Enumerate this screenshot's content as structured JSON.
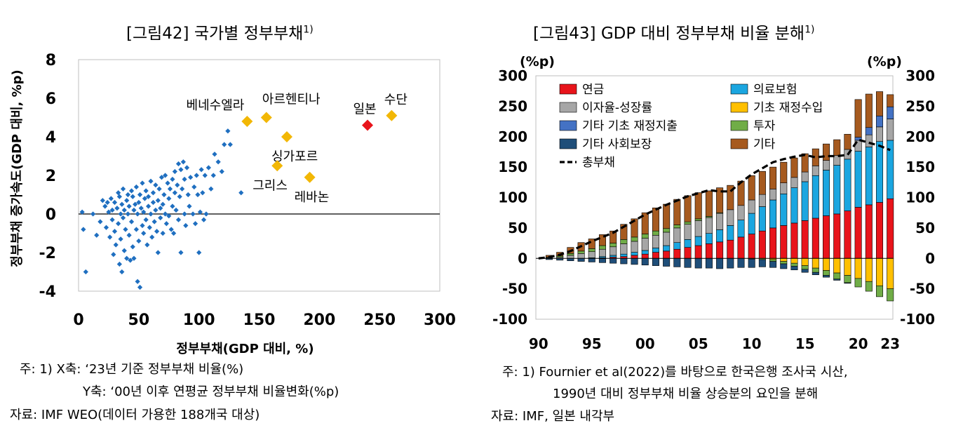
{
  "left": {
    "title": "[그림42] 국가별 정부부채",
    "title_sup": "1)",
    "notes": [
      "주: 1) X축: ‘23년 기준 정부부채 비율(%)",
      "Y축: ‘00년 이후 연평균 정부부채 비율변화(%p)",
      "자료: IMF WEO(데이터 가용한 188개국 대상)"
    ]
  },
  "right": {
    "title": "[그림43] GDP 대비 정부부채 비율 분해",
    "title_sup": "1)",
    "notes": [
      "주: 1) Fournier et al(2022)를 바탕으로 한국은행 조사국 시산,",
      "1990년 대비 정부부채 비율 상승분의 요인을 분해",
      "자료: IMF, 일본 내각부"
    ]
  },
  "chart_data": [
    {
      "type": "scatter",
      "xlabel": "정부부채(GDP 대비, %)",
      "ylabel": "정부부채 증가속도(GDP 대비, %p)",
      "xlim": [
        0,
        300
      ],
      "ylim": [
        -4,
        8
      ],
      "x_ticks": [
        0,
        50,
        100,
        150,
        200,
        250,
        300
      ],
      "y_ticks": [
        -4,
        -2,
        0,
        2,
        4,
        6,
        8
      ],
      "colors": {
        "countries": "#1f6fc0",
        "highlight": "#f2b705",
        "japan": "#e8141b"
      },
      "points": [
        [
          3,
          0.1
        ],
        [
          4,
          -0.8
        ],
        [
          6,
          -3.0
        ],
        [
          12,
          0.0
        ],
        [
          15,
          -1.1
        ],
        [
          18,
          -0.4
        ],
        [
          20,
          0.7
        ],
        [
          22,
          0.4
        ],
        [
          23,
          -0.7
        ],
        [
          24,
          0.6
        ],
        [
          25,
          0.1
        ],
        [
          26,
          -1.2
        ],
        [
          27,
          0.8
        ],
        [
          28,
          0.2
        ],
        [
          28,
          -0.3
        ],
        [
          29,
          -2.1
        ],
        [
          30,
          0.6
        ],
        [
          30,
          -0.9
        ],
        [
          31,
          -1.6
        ],
        [
          32,
          0.3
        ],
        [
          33,
          1.1
        ],
        [
          33,
          -0.5
        ],
        [
          34,
          -2.6
        ],
        [
          34,
          0.9
        ],
        [
          35,
          0.0
        ],
        [
          35,
          -1.3
        ],
        [
          36,
          0.5
        ],
        [
          36,
          -3.0
        ],
        [
          37,
          1.3
        ],
        [
          37,
          -0.2
        ],
        [
          38,
          0.2
        ],
        [
          38,
          -1.9
        ],
        [
          39,
          -0.8
        ],
        [
          40,
          0.7
        ],
        [
          40,
          -2.3
        ],
        [
          41,
          0.0
        ],
        [
          41,
          1.0
        ],
        [
          42,
          -1.1
        ],
        [
          42,
          0.4
        ],
        [
          43,
          -2.4
        ],
        [
          44,
          1.2
        ],
        [
          44,
          -0.4
        ],
        [
          45,
          0.9
        ],
        [
          45,
          -1.7
        ],
        [
          46,
          0.2
        ],
        [
          46,
          -2.3
        ],
        [
          47,
          0.5
        ],
        [
          48,
          1.4
        ],
        [
          48,
          -0.8
        ],
        [
          49,
          -3.5
        ],
        [
          49,
          0.0
        ],
        [
          50,
          0.6
        ],
        [
          50,
          -1.4
        ],
        [
          51,
          1.0
        ],
        [
          51,
          -3.8
        ],
        [
          52,
          0.3
        ],
        [
          53,
          -0.6
        ],
        [
          53,
          1.6
        ],
        [
          54,
          0.1
        ],
        [
          54,
          -1.0
        ],
        [
          55,
          0.8
        ],
        [
          56,
          -0.3
        ],
        [
          56,
          1.2
        ],
        [
          57,
          -1.6
        ],
        [
          58,
          0.4
        ],
        [
          58,
          0.9
        ],
        [
          59,
          -0.7
        ],
        [
          60,
          1.7
        ],
        [
          60,
          0.0
        ],
        [
          61,
          -1.2
        ],
        [
          62,
          0.6
        ],
        [
          62,
          1.1
        ],
        [
          63,
          -0.4
        ],
        [
          64,
          0.2
        ],
        [
          64,
          1.5
        ],
        [
          65,
          -0.9
        ],
        [
          66,
          0.7
        ],
        [
          66,
          -2.0
        ],
        [
          67,
          1.3
        ],
        [
          68,
          0.3
        ],
        [
          68,
          -0.2
        ],
        [
          69,
          1.9
        ],
        [
          70,
          0.5
        ],
        [
          70,
          -1.0
        ],
        [
          71,
          1.0
        ],
        [
          72,
          2.0
        ],
        [
          72,
          0.0
        ],
        [
          73,
          -0.5
        ],
        [
          74,
          1.6
        ],
        [
          75,
          0.8
        ],
        [
          75,
          -0.1
        ],
        [
          76,
          1.3
        ],
        [
          77,
          -0.8
        ],
        [
          78,
          1.8
        ],
        [
          78,
          0.4
        ],
        [
          79,
          -1.0
        ],
        [
          80,
          1.1
        ],
        [
          80,
          2.2
        ],
        [
          81,
          0.2
        ],
        [
          82,
          1.5
        ],
        [
          83,
          2.6
        ],
        [
          83,
          -0.3
        ],
        [
          84,
          0.9
        ],
        [
          85,
          2.3
        ],
        [
          85,
          -2.0
        ],
        [
          86,
          1.3
        ],
        [
          87,
          2.7
        ],
        [
          88,
          0.0
        ],
        [
          88,
          1.8
        ],
        [
          89,
          -0.6
        ],
        [
          90,
          2.4
        ],
        [
          91,
          1.0
        ],
        [
          92,
          0.4
        ],
        [
          93,
          1.9
        ],
        [
          95,
          0.0
        ],
        [
          96,
          1.4
        ],
        [
          97,
          -0.5
        ],
        [
          98,
          2.0
        ],
        [
          99,
          1.0
        ],
        [
          100,
          -2.0
        ],
        [
          101,
          0.1
        ],
        [
          102,
          2.3
        ],
        [
          103,
          1.1
        ],
        [
          104,
          -0.3
        ],
        [
          105,
          2.0
        ],
        [
          106,
          0.0
        ],
        [
          108,
          2.4
        ],
        [
          110,
          1.3
        ],
        [
          112,
          2.0
        ],
        [
          113,
          3.1
        ],
        [
          116,
          2.7
        ],
        [
          119,
          2.2
        ],
        [
          121,
          3.6
        ],
        [
          124,
          4.3
        ],
        [
          126,
          3.6
        ],
        [
          135,
          1.1
        ]
      ],
      "labeled_points": [
        {
          "name": "베네수엘라",
          "x": 140,
          "y": 4.8,
          "color": "#f2b705"
        },
        {
          "name": "아르헨티나",
          "x": 156,
          "y": 5.0,
          "color": "#f2b705"
        },
        {
          "name": "싱가포르",
          "x": 173,
          "y": 4.0,
          "color": "#f2b705"
        },
        {
          "name": "그리스",
          "x": 165,
          "y": 2.5,
          "color": "#f2b705"
        },
        {
          "name": "레바논",
          "x": 192,
          "y": 1.9,
          "color": "#f2b705"
        },
        {
          "name": "일본",
          "x": 240,
          "y": 4.6,
          "color": "#e8141b"
        },
        {
          "name": "수단",
          "x": 260,
          "y": 5.1,
          "color": "#f2b705"
        }
      ]
    },
    {
      "type": "bar",
      "stacked": true,
      "left_unit": "(%p)",
      "right_unit": "(%p)",
      "ylim": [
        -100,
        300
      ],
      "y_ticks": [
        -100,
        -50,
        0,
        50,
        100,
        150,
        200,
        250,
        300
      ],
      "x_tick_labels": [
        {
          "year": 1990,
          "label": "90"
        },
        {
          "year": 1995,
          "label": "95"
        },
        {
          "year": 2000,
          "label": "00"
        },
        {
          "year": 2005,
          "label": "05"
        },
        {
          "year": 2010,
          "label": "10"
        },
        {
          "year": 2015,
          "label": "15"
        },
        {
          "year": 2020,
          "label": "20"
        },
        {
          "year": 2023,
          "label": "23"
        }
      ],
      "years": [
        1990,
        1991,
        1992,
        1993,
        1994,
        1995,
        1996,
        1997,
        1998,
        1999,
        2000,
        2001,
        2002,
        2003,
        2004,
        2005,
        2006,
        2007,
        2008,
        2009,
        2010,
        2011,
        2012,
        2013,
        2014,
        2015,
        2016,
        2017,
        2018,
        2019,
        2020,
        2021,
        2022,
        2023
      ],
      "series": [
        {
          "name": "연금",
          "color": "#e8141b",
          "stack": "pos",
          "values": [
            0,
            0,
            0,
            0,
            0,
            0,
            1,
            2,
            3,
            5,
            7,
            10,
            12,
            15,
            18,
            21,
            24,
            27,
            30,
            35,
            40,
            45,
            50,
            54,
            58,
            62,
            66,
            70,
            73,
            78,
            84,
            88,
            92,
            98
          ]
        },
        {
          "name": "의료보험",
          "color": "#1ba6e0",
          "stack": "pos",
          "values": [
            0,
            0,
            0,
            0,
            0,
            1,
            2,
            3,
            4,
            5,
            6,
            7,
            9,
            11,
            13,
            15,
            17,
            20,
            24,
            28,
            34,
            40,
            46,
            52,
            58,
            64,
            70,
            75,
            80,
            85,
            92,
            95,
            100,
            96
          ]
        },
        {
          "name": "이자율-성장률",
          "color": "#a6a6a6",
          "stack": "pos",
          "values": [
            0,
            1,
            2,
            5,
            8,
            10,
            12,
            14,
            17,
            18,
            20,
            21,
            22,
            24,
            25,
            26,
            26,
            27,
            26,
            24,
            22,
            20,
            18,
            18,
            17,
            16,
            16,
            16,
            16,
            16,
            18,
            20,
            24,
            35
          ]
        },
        {
          "name": "기초 재정수입",
          "color": "#ffc000",
          "stack": "neg",
          "values": [
            0,
            0,
            0,
            0,
            0,
            0,
            0,
            0,
            0,
            0,
            0,
            0,
            0,
            0,
            0,
            0,
            0,
            0,
            0,
            0,
            0,
            0,
            -2,
            -5,
            -8,
            -12,
            -16,
            -20,
            -24,
            -28,
            -33,
            -38,
            -45,
            -50
          ]
        },
        {
          "name": "기타 기초 재정지출",
          "color": "#4472c4",
          "stack": "pos",
          "values": [
            0,
            0,
            0,
            0,
            0,
            0,
            0,
            0,
            0,
            0,
            0,
            0,
            0,
            0,
            0,
            0,
            0,
            0,
            0,
            0,
            0,
            0,
            0,
            0,
            0,
            0,
            0,
            0,
            0,
            0,
            5,
            12,
            18,
            20
          ]
        },
        {
          "name": "투자",
          "color": "#70ad47",
          "stack": "mixed",
          "values": [
            0,
            1,
            2,
            3,
            4,
            5,
            6,
            6,
            7,
            7,
            7,
            7,
            6,
            5,
            4,
            3,
            2,
            1,
            0,
            0,
            -1,
            -2,
            -3,
            -4,
            -5,
            -6,
            -7,
            -8,
            -10,
            -12,
            -14,
            -16,
            -18,
            -20
          ]
        },
        {
          "name": "기타 사회보장",
          "color": "#1f4e79",
          "stack": "neg",
          "values": [
            0,
            -2,
            -3,
            -4,
            -5,
            -6,
            -7,
            -8,
            -9,
            -10,
            -11,
            -12,
            -13,
            -14,
            -15,
            -16,
            -16,
            -17,
            -16,
            -15,
            -14,
            -12,
            -10,
            -8,
            -6,
            -5,
            -4,
            -3,
            -2,
            -1,
            0,
            0,
            0,
            0
          ]
        },
        {
          "name": "기타",
          "color": "#a65a1f",
          "stack": "pos",
          "values": [
            0,
            3,
            6,
            10,
            14,
            16,
            18,
            20,
            25,
            30,
            35,
            38,
            40,
            42,
            43,
            43,
            42,
            41,
            40,
            40,
            40,
            38,
            36,
            34,
            32,
            30,
            28,
            27,
            26,
            25,
            62,
            55,
            40,
            20
          ]
        }
      ],
      "line": {
        "name": "총부채",
        "color": "#000000",
        "values": [
          0,
          2,
          6,
          12,
          20,
          28,
          35,
          42,
          52,
          62,
          72,
          80,
          88,
          95,
          102,
          107,
          112,
          110,
          110,
          125,
          138,
          148,
          158,
          163,
          167,
          170,
          166,
          168,
          168,
          170,
          195,
          190,
          185,
          178
        ]
      },
      "legend_order": [
        "연금",
        "의료보험",
        "이자율-성장률",
        "기초 재정수입",
        "기타 기초 재정지출",
        "투자",
        "기타 사회보장",
        "기타",
        "총부채"
      ]
    }
  ]
}
